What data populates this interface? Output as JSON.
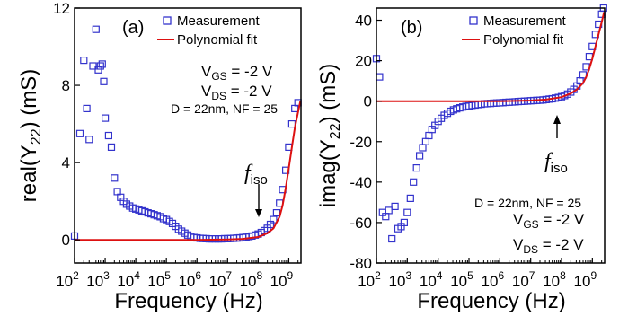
{
  "chart_data": [
    {
      "type": "scatter",
      "panel_label": "(a)",
      "xlabel": "Frequency (Hz)",
      "ylabel": "real(Y22) (mS)",
      "ylabel_parts": {
        "prefix": "real(Y",
        "sub": "22",
        "suffix": ") (mS)"
      },
      "x_scale": "log",
      "xlim": [
        100,
        2500000000
      ],
      "ylim": [
        -1.2,
        12
      ],
      "x_ticks": [
        {
          "exp": "2",
          "value": 100
        },
        {
          "exp": "3",
          "value": 1000
        },
        {
          "exp": "4",
          "value": 10000
        },
        {
          "exp": "5",
          "value": 100000
        },
        {
          "exp": "6",
          "value": 1000000
        },
        {
          "exp": "7",
          "value": 10000000
        },
        {
          "exp": "8",
          "value": 100000000
        },
        {
          "exp": "9",
          "value": 1000000000
        }
      ],
      "y_ticks": [
        0,
        4,
        8,
        12
      ],
      "grid": false,
      "legend_position": "top-right",
      "series": [
        {
          "name": "Measurement",
          "marker": "open-square",
          "color": "#3333cc",
          "points": [
            [
              100,
              0.2
            ],
            [
              150,
              5.5
            ],
            [
              200,
              9.3
            ],
            [
              250,
              6.8
            ],
            [
              300,
              5.2
            ],
            [
              400,
              9.0
            ],
            [
              500,
              10.9
            ],
            [
              600,
              8.8
            ],
            [
              700,
              9.0
            ],
            [
              800,
              9.1
            ],
            [
              900,
              8.2
            ],
            [
              1000,
              6.3
            ],
            [
              1300,
              5.4
            ],
            [
              1600,
              4.8
            ],
            [
              2000,
              3.2
            ],
            [
              2500,
              2.5
            ],
            [
              3200,
              2.2
            ],
            [
              4000,
              2.0
            ],
            [
              5000,
              1.85
            ],
            [
              6300,
              1.75
            ],
            [
              8000,
              1.65
            ],
            [
              10000,
              1.6
            ],
            [
              12600,
              1.55
            ],
            [
              15800,
              1.5
            ],
            [
              20000,
              1.45
            ],
            [
              25000,
              1.4
            ],
            [
              31600,
              1.35
            ],
            [
              40000,
              1.3
            ],
            [
              50000,
              1.25
            ],
            [
              63000,
              1.2
            ],
            [
              80000,
              1.1
            ],
            [
              100000,
              1.05
            ],
            [
              126000,
              0.95
            ],
            [
              158000,
              0.85
            ],
            [
              200000,
              0.7
            ],
            [
              251000,
              0.55
            ],
            [
              316000,
              0.45
            ],
            [
              400000,
              0.35
            ],
            [
              500000,
              0.25
            ],
            [
              631000,
              0.18
            ],
            [
              800000,
              0.12
            ],
            [
              1000000,
              0.1
            ],
            [
              1260000,
              0.08
            ],
            [
              1580000,
              0.07
            ],
            [
              2000000,
              0.06
            ],
            [
              2510000,
              0.05
            ],
            [
              3160000,
              0.05
            ],
            [
              4000000,
              0.05
            ],
            [
              5000000,
              0.05
            ],
            [
              6300000,
              0.05
            ],
            [
              8000000,
              0.06
            ],
            [
              10000000,
              0.06
            ],
            [
              12600000,
              0.07
            ],
            [
              15800000,
              0.08
            ],
            [
              20000000,
              0.09
            ],
            [
              25100000,
              0.1
            ],
            [
              31600000,
              0.12
            ],
            [
              40000000,
              0.14
            ],
            [
              50000000,
              0.17
            ],
            [
              63000000,
              0.2
            ],
            [
              80000000,
              0.25
            ],
            [
              100000000,
              0.3
            ],
            [
              126000000,
              0.38
            ],
            [
              158000000,
              0.48
            ],
            [
              200000000,
              0.6
            ],
            [
              251000000,
              0.8
            ],
            [
              316000000,
              1.05
            ],
            [
              400000000,
              1.4
            ],
            [
              500000000,
              1.9
            ],
            [
              631000000,
              2.6
            ],
            [
              800000000,
              3.6
            ],
            [
              1000000000,
              4.8
            ],
            [
              1260000000,
              6.0
            ],
            [
              1580000000,
              6.8
            ],
            [
              2000000000,
              7.1
            ]
          ]
        },
        {
          "name": "Polynomial fit",
          "line": true,
          "color": "#dd1111",
          "points": [
            [
              100,
              0
            ],
            [
              1000000,
              0
            ],
            [
              10000000,
              0.02
            ],
            [
              31600000,
              0.05
            ],
            [
              100000000,
              0.15
            ],
            [
              200000000,
              0.35
            ],
            [
              316000000,
              0.6
            ],
            [
              500000000,
              1.2
            ],
            [
              631000000,
              1.8
            ],
            [
              800000000,
              2.7
            ],
            [
              1000000000,
              3.7
            ],
            [
              1260000000,
              4.8
            ],
            [
              1580000000,
              5.8
            ],
            [
              2000000000,
              6.6
            ],
            [
              2400000000,
              7.2
            ]
          ]
        }
      ],
      "annotations": {
        "vgs": {
          "label": "V",
          "sub": "GS",
          "value": " = -2 V"
        },
        "vds": {
          "label": "V",
          "sub": "DS",
          "value": " = -2 V"
        },
        "device": "D = 22nm, NF = 25",
        "fiso": {
          "f": "f",
          "sub": "iso",
          "arrow_x": 100000000
        }
      }
    },
    {
      "type": "scatter",
      "panel_label": "(b)",
      "xlabel": "Frequency (Hz)",
      "ylabel": "imag(Y22) (mS)",
      "ylabel_parts": {
        "prefix": "imag(Y",
        "sub": "22",
        "suffix": ") (mS)"
      },
      "x_scale": "log",
      "xlim": [
        100,
        2500000000
      ],
      "ylim": [
        -80,
        46
      ],
      "x_ticks": [
        {
          "exp": "2",
          "value": 100
        },
        {
          "exp": "3",
          "value": 1000
        },
        {
          "exp": "4",
          "value": 10000
        },
        {
          "exp": "5",
          "value": 100000
        },
        {
          "exp": "6",
          "value": 1000000
        },
        {
          "exp": "7",
          "value": 10000000
        },
        {
          "exp": "8",
          "value": 100000000
        },
        {
          "exp": "9",
          "value": 1000000000
        }
      ],
      "y_ticks": [
        -80,
        -60,
        -40,
        -20,
        0,
        20,
        40
      ],
      "grid": false,
      "legend_position": "top-right",
      "series": [
        {
          "name": "Measurement",
          "marker": "open-square",
          "color": "#3333cc",
          "points": [
            [
              100,
              21
            ],
            [
              126,
              12
            ],
            [
              158,
              -55
            ],
            [
              200,
              -57
            ],
            [
              251,
              -54
            ],
            [
              316,
              -68
            ],
            [
              398,
              -52
            ],
            [
              501,
              -63
            ],
            [
              631,
              -62
            ],
            [
              794,
              -60
            ],
            [
              1000,
              -55
            ],
            [
              1260,
              -48
            ],
            [
              1580,
              -40
            ],
            [
              2000,
              -33
            ],
            [
              2510,
              -27
            ],
            [
              3160,
              -23
            ],
            [
              3980,
              -20
            ],
            [
              5010,
              -17
            ],
            [
              6310,
              -14
            ],
            [
              7940,
              -12
            ],
            [
              10000,
              -10
            ],
            [
              12600,
              -8.5
            ],
            [
              15800,
              -7
            ],
            [
              20000,
              -6
            ],
            [
              25100,
              -5
            ],
            [
              31600,
              -4.3
            ],
            [
              39800,
              -3.8
            ],
            [
              50100,
              -3.3
            ],
            [
              63100,
              -2.9
            ],
            [
              79400,
              -2.6
            ],
            [
              100000,
              -2.3
            ],
            [
              126000,
              -2.1
            ],
            [
              158000,
              -1.9
            ],
            [
              200000,
              -1.7
            ],
            [
              251000,
              -1.5
            ],
            [
              316000,
              -1.3
            ],
            [
              398000,
              -1.2
            ],
            [
              501000,
              -1.1
            ],
            [
              631000,
              -1.0
            ],
            [
              794000,
              -0.9
            ],
            [
              1000000,
              -0.8
            ],
            [
              1260000,
              -0.7
            ],
            [
              1580000,
              -0.6
            ],
            [
              2000000,
              -0.5
            ],
            [
              2510000,
              -0.4
            ],
            [
              3160000,
              -0.3
            ],
            [
              3980000,
              -0.2
            ],
            [
              5010000,
              -0.1
            ],
            [
              6310000,
              0
            ],
            [
              7940000,
              0.1
            ],
            [
              10000000,
              0.2
            ],
            [
              12600000,
              0.3
            ],
            [
              15800000,
              0.4
            ],
            [
              20000000,
              0.5
            ],
            [
              25100000,
              0.6
            ],
            [
              31600000,
              0.8
            ],
            [
              39800000,
              1.0
            ],
            [
              50100000,
              1.2
            ],
            [
              63100000,
              1.5
            ],
            [
              79400000,
              1.8
            ],
            [
              100000000,
              2.2
            ],
            [
              126000000,
              2.8
            ],
            [
              158000000,
              3.5
            ],
            [
              200000000,
              4.5
            ],
            [
              251000000,
              5.8
            ],
            [
              316000000,
              7.5
            ],
            [
              398000000,
              10
            ],
            [
              501000000,
              13
            ],
            [
              631000000,
              17
            ],
            [
              794000000,
              22
            ],
            [
              1000000000,
              27
            ],
            [
              1260000000,
              33
            ],
            [
              1580000000,
              38
            ],
            [
              2000000000,
              43
            ],
            [
              2300000000,
              46
            ]
          ]
        },
        {
          "name": "Polynomial fit",
          "line": true,
          "color": "#dd1111",
          "points": [
            [
              100,
              0
            ],
            [
              1000000,
              0
            ],
            [
              10000000,
              0.3
            ],
            [
              31600000,
              0.8
            ],
            [
              100000000,
              2.0
            ],
            [
              200000000,
              3.8
            ],
            [
              316000000,
              5.8
            ],
            [
              501000000,
              9
            ],
            [
              631000000,
              12
            ],
            [
              794000000,
              16
            ],
            [
              1000000000,
              21
            ],
            [
              1260000000,
              27
            ],
            [
              1580000000,
              33
            ],
            [
              2000000000,
              39
            ],
            [
              2400000000,
              44
            ]
          ]
        }
      ],
      "annotations": {
        "vgs": {
          "label": "V",
          "sub": "GS",
          "value": " = -2 V"
        },
        "vds": {
          "label": "V",
          "sub": "DS",
          "value": " = -2 V"
        },
        "device": "D = 22nm, NF = 25",
        "fiso": {
          "f": "f",
          "sub": "iso",
          "arrow_x": 63100000
        }
      }
    }
  ]
}
